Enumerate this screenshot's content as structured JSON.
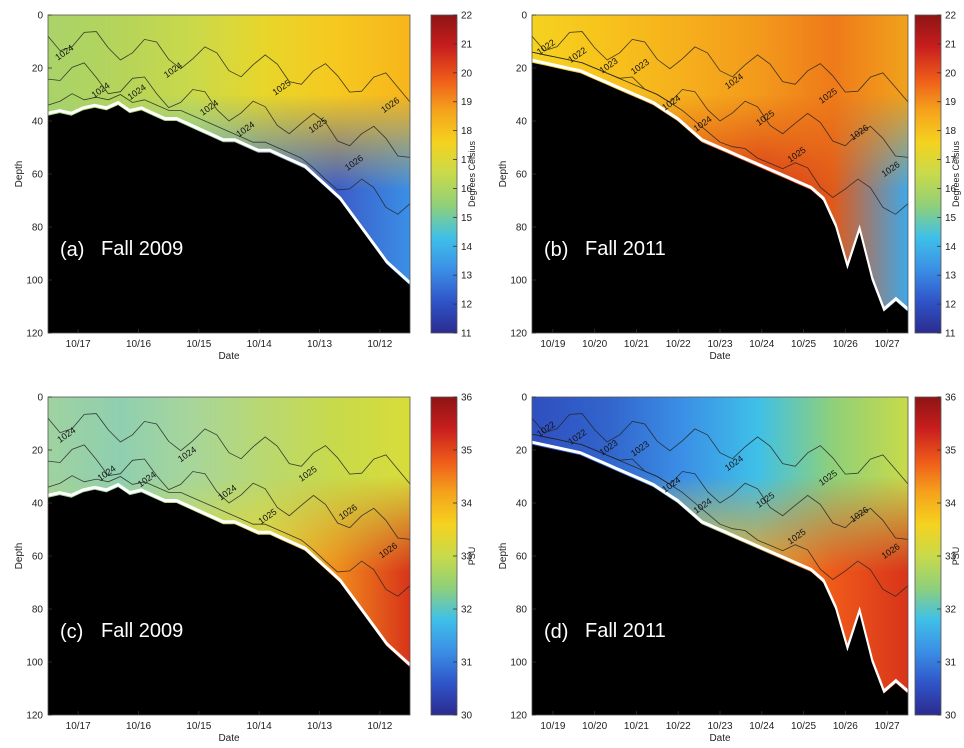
{
  "colorbar_stops": [
    "#2b2b8f",
    "#2f55c8",
    "#3b8fe6",
    "#3fc0e8",
    "#8fd07a",
    "#c8da4a",
    "#f5d21f",
    "#f5a21c",
    "#ee5a1a",
    "#c81e1e",
    "#8e1414"
  ],
  "seafloor_color": "#000000",
  "chart_data": [
    {
      "type": "heatmap",
      "panel": "(a)",
      "label": "Fall 2009",
      "xlabel": "Date",
      "ylabel": "Depth",
      "x_ticks": [
        "10/17",
        "10/16",
        "10/15",
        "10/14",
        "10/13",
        "10/12"
      ],
      "y_ticks": [
        0,
        20,
        40,
        60,
        80,
        100,
        120
      ],
      "ylim": [
        0,
        120
      ],
      "colorbar": {
        "label": "Degrees Celsius",
        "range": [
          11,
          22
        ],
        "ticks": [
          11,
          12,
          13,
          14,
          15,
          16,
          17,
          18,
          19,
          20,
          21,
          22
        ]
      },
      "contour_labels": [
        "1024",
        "1024",
        "1024",
        "1024",
        "1024",
        "1024",
        "1025",
        "1025",
        "1026",
        "1026"
      ],
      "seafloor_depth_profile": [
        38,
        37,
        38,
        36,
        35,
        36,
        34,
        37,
        36,
        38,
        40,
        40,
        42,
        44,
        46,
        48,
        48,
        50,
        52,
        52,
        54,
        56,
        58,
        62,
        66,
        70,
        76,
        82,
        88,
        94,
        98,
        102
      ],
      "grid": false
    },
    {
      "type": "heatmap",
      "panel": "(b)",
      "label": "Fall 2011",
      "xlabel": "Date",
      "ylabel": "Depth",
      "x_ticks": [
        "10/19",
        "10/20",
        "10/21",
        "10/22",
        "10/23",
        "10/24",
        "10/25",
        "10/26",
        "10/27"
      ],
      "y_ticks": [
        0,
        20,
        40,
        60,
        80,
        100,
        120
      ],
      "ylim": [
        0,
        120
      ],
      "colorbar": {
        "label": "Degrees Celsius",
        "range": [
          11,
          22
        ],
        "ticks": [
          11,
          12,
          13,
          14,
          15,
          16,
          17,
          18,
          19,
          20,
          21,
          22
        ]
      },
      "contour_labels": [
        "1022",
        "1022",
        "1023",
        "1023",
        "1024",
        "1024",
        "1024",
        "1025",
        "1025",
        "1025",
        "1026",
        "1026"
      ],
      "seafloor_depth_profile": [
        18,
        19,
        20,
        21,
        22,
        24,
        26,
        28,
        30,
        32,
        34,
        37,
        40,
        44,
        48,
        50,
        52,
        54,
        56,
        58,
        60,
        62,
        64,
        66,
        70,
        80,
        96,
        82,
        100,
        112,
        108,
        112
      ],
      "grid": false
    },
    {
      "type": "heatmap",
      "panel": "(c)",
      "label": "Fall 2009",
      "xlabel": "Date",
      "ylabel": "Depth",
      "x_ticks": [
        "10/17",
        "10/16",
        "10/15",
        "10/14",
        "10/13",
        "10/12"
      ],
      "y_ticks": [
        0,
        20,
        40,
        60,
        80,
        100,
        120
      ],
      "ylim": [
        0,
        120
      ],
      "colorbar": {
        "label": "PSU",
        "range": [
          30,
          36
        ],
        "ticks": [
          30,
          31,
          32,
          33,
          34,
          35,
          36
        ]
      },
      "contour_labels": [
        "1024",
        "1024",
        "1024",
        "1024",
        "1024",
        "1025",
        "1025",
        "1026",
        "1026"
      ],
      "seafloor_depth_profile": [
        38,
        37,
        38,
        36,
        35,
        36,
        34,
        37,
        36,
        38,
        40,
        40,
        42,
        44,
        46,
        48,
        48,
        50,
        52,
        52,
        54,
        56,
        58,
        62,
        66,
        70,
        76,
        82,
        88,
        94,
        98,
        102
      ],
      "grid": false
    },
    {
      "type": "heatmap",
      "panel": "(d)",
      "label": "Fall 2011",
      "xlabel": "Date",
      "ylabel": "Depth",
      "x_ticks": [
        "10/19",
        "10/20",
        "10/21",
        "10/22",
        "10/23",
        "10/24",
        "10/25",
        "10/26",
        "10/27"
      ],
      "y_ticks": [
        0,
        20,
        40,
        60,
        80,
        100,
        120
      ],
      "ylim": [
        0,
        120
      ],
      "colorbar": {
        "label": "PSU",
        "range": [
          30,
          36
        ],
        "ticks": [
          30,
          31,
          32,
          33,
          34,
          35,
          36
        ]
      },
      "contour_labels": [
        "1022",
        "1022",
        "1023",
        "1023",
        "1024",
        "1024",
        "1024",
        "1025",
        "1025",
        "1025",
        "1026",
        "1026"
      ],
      "seafloor_depth_profile": [
        18,
        19,
        20,
        21,
        22,
        24,
        26,
        28,
        30,
        32,
        34,
        37,
        40,
        44,
        48,
        50,
        52,
        54,
        56,
        58,
        60,
        62,
        64,
        66,
        70,
        80,
        96,
        82,
        100,
        112,
        108,
        112
      ],
      "grid": false
    }
  ]
}
